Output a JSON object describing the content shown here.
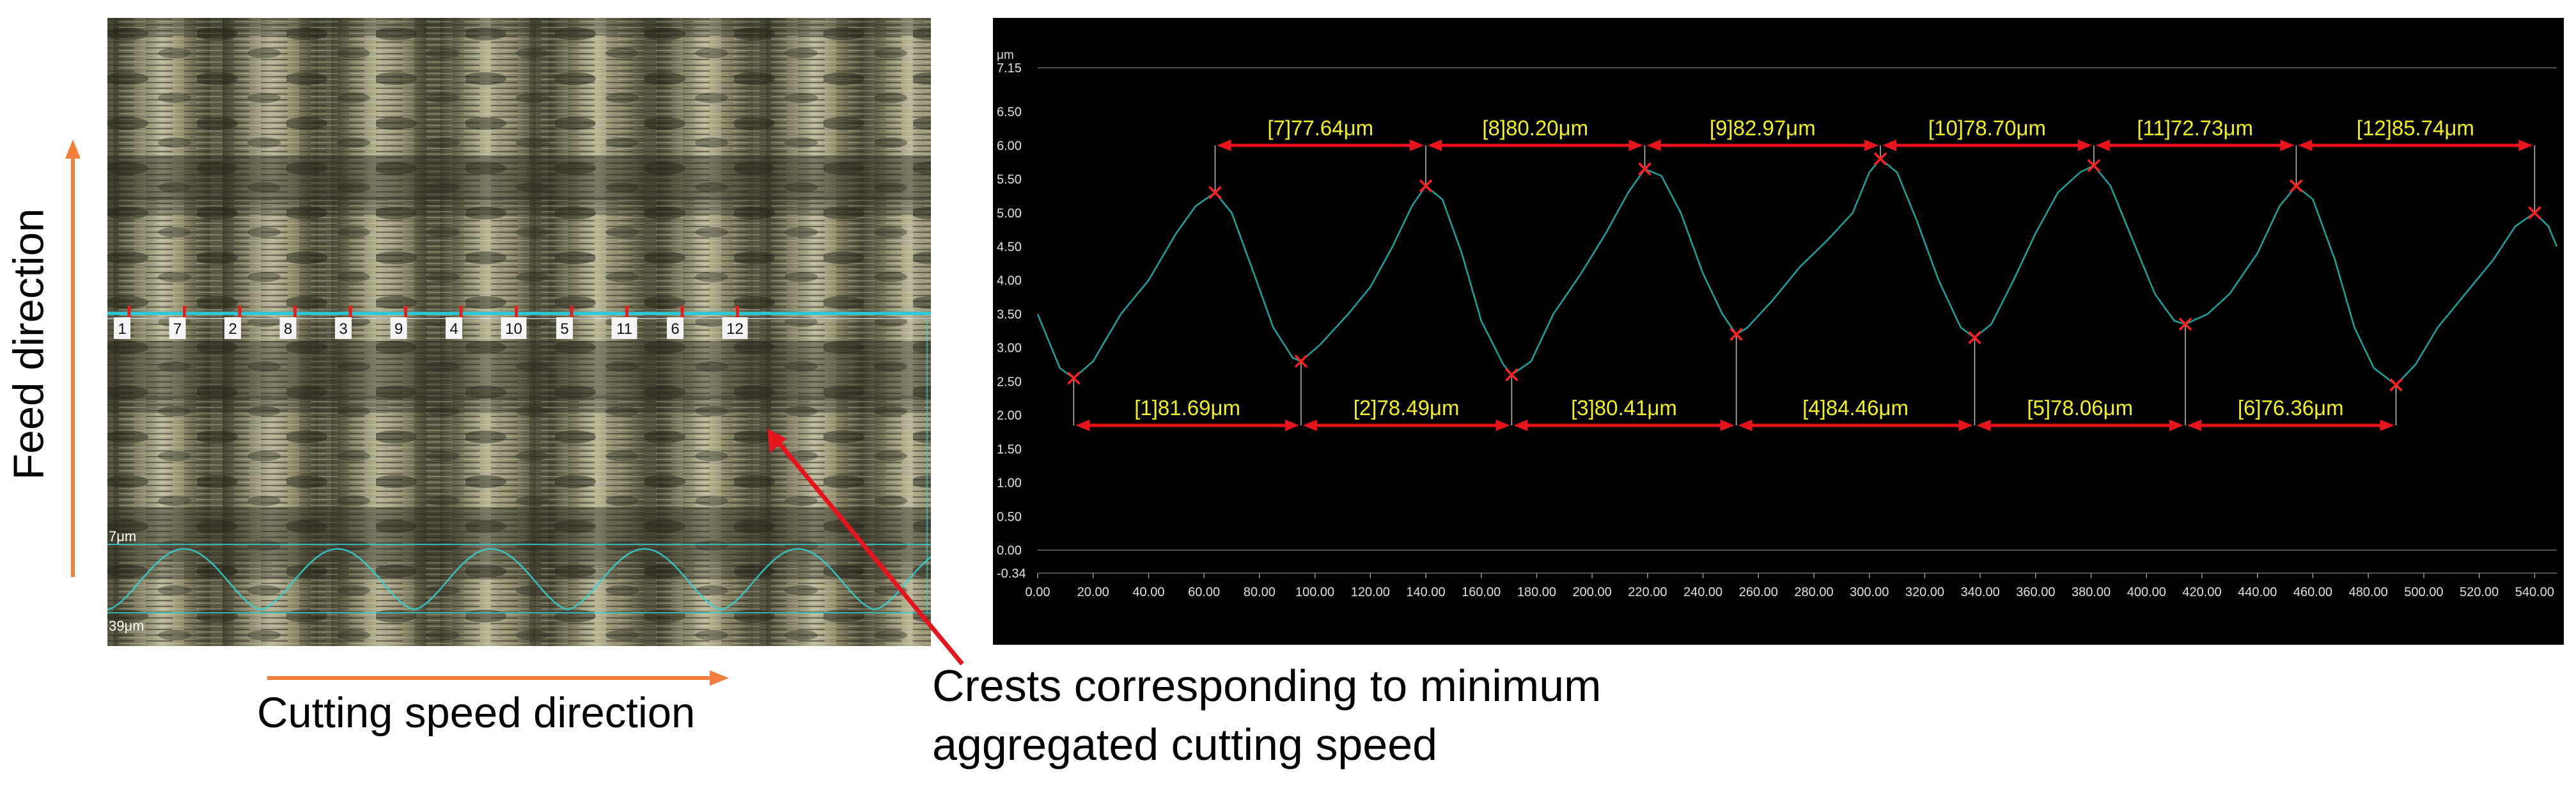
{
  "labels": {
    "feed_direction": "Feed direction",
    "cutting_speed_direction": "Cutting speed direction",
    "crest_annotation_line1": "Crests corresponding to minimum",
    "crest_annotation_line2": "aggregated cutting speed"
  },
  "micrograph": {
    "marker_numbers": [
      "1",
      "7",
      "2",
      "8",
      "3",
      "9",
      "4",
      "10",
      "5",
      "11",
      "6",
      "12"
    ],
    "inset_unit_top": "7μm",
    "inset_unit_bottom": "39μm"
  },
  "colors": {
    "orange_arrow": "#f07f3c",
    "red_arrow": "#e8141c",
    "profile_line": "#1aa59e",
    "measure_text": "#f2f21e",
    "marker": "#ff2020"
  },
  "chart_data": {
    "type": "line",
    "title": "",
    "ylabel_unit": "μm",
    "xlim": [
      0,
      548
    ],
    "ylim": [
      -0.34,
      7.15
    ],
    "x_ticks": [
      "0.00",
      "20.00",
      "40.00",
      "60.00",
      "80.00",
      "100.00",
      "120.00",
      "140.00",
      "160.00",
      "180.00",
      "200.00",
      "220.00",
      "240.00",
      "260.00",
      "280.00",
      "300.00",
      "320.00",
      "340.00",
      "360.00",
      "380.00",
      "400.00",
      "420.00",
      "440.00",
      "460.00",
      "480.00",
      "500.00",
      "520.00",
      "540.00"
    ],
    "y_ticks": [
      "7.15",
      "6.50",
      "6.00",
      "5.50",
      "5.00",
      "4.50",
      "4.00",
      "3.50",
      "3.00",
      "2.50",
      "2.00",
      "1.50",
      "1.00",
      "0.50",
      "0.00",
      "-0.34"
    ],
    "profile": [
      [
        0,
        3.5
      ],
      [
        4,
        3.1
      ],
      [
        8,
        2.7
      ],
      [
        13,
        2.55
      ],
      [
        20,
        2.8
      ],
      [
        30,
        3.5
      ],
      [
        40,
        4.0
      ],
      [
        50,
        4.7
      ],
      [
        57,
        5.1
      ],
      [
        64,
        5.3
      ],
      [
        70,
        5.0
      ],
      [
        78,
        4.1
      ],
      [
        85,
        3.3
      ],
      [
        92,
        2.85
      ],
      [
        95,
        2.8
      ],
      [
        102,
        3.05
      ],
      [
        112,
        3.5
      ],
      [
        120,
        3.9
      ],
      [
        128,
        4.5
      ],
      [
        135,
        5.1
      ],
      [
        140,
        5.4
      ],
      [
        146,
        5.2
      ],
      [
        153,
        4.4
      ],
      [
        160,
        3.4
      ],
      [
        168,
        2.75
      ],
      [
        171,
        2.6
      ],
      [
        178,
        2.8
      ],
      [
        186,
        3.5
      ],
      [
        196,
        4.1
      ],
      [
        205,
        4.7
      ],
      [
        213,
        5.3
      ],
      [
        219,
        5.65
      ],
      [
        225,
        5.55
      ],
      [
        232,
        5.0
      ],
      [
        240,
        4.1
      ],
      [
        247,
        3.5
      ],
      [
        252,
        3.2
      ],
      [
        256,
        3.3
      ],
      [
        265,
        3.7
      ],
      [
        275,
        4.2
      ],
      [
        285,
        4.6
      ],
      [
        294,
        5.0
      ],
      [
        300,
        5.6
      ],
      [
        304,
        5.8
      ],
      [
        310,
        5.6
      ],
      [
        317,
        4.9
      ],
      [
        325,
        4.0
      ],
      [
        333,
        3.3
      ],
      [
        338,
        3.15
      ],
      [
        344,
        3.35
      ],
      [
        352,
        4.0
      ],
      [
        360,
        4.7
      ],
      [
        368,
        5.3
      ],
      [
        376,
        5.6
      ],
      [
        381,
        5.7
      ],
      [
        387,
        5.4
      ],
      [
        395,
        4.6
      ],
      [
        403,
        3.8
      ],
      [
        410,
        3.4
      ],
      [
        414,
        3.35
      ],
      [
        422,
        3.5
      ],
      [
        430,
        3.8
      ],
      [
        440,
        4.4
      ],
      [
        448,
        5.1
      ],
      [
        454,
        5.4
      ],
      [
        460,
        5.2
      ],
      [
        468,
        4.3
      ],
      [
        475,
        3.3
      ],
      [
        482,
        2.7
      ],
      [
        490,
        2.45
      ],
      [
        497,
        2.75
      ],
      [
        505,
        3.3
      ],
      [
        515,
        3.8
      ],
      [
        525,
        4.3
      ],
      [
        533,
        4.8
      ],
      [
        540,
        5.0
      ],
      [
        545,
        4.8
      ],
      [
        548,
        4.5
      ]
    ],
    "crest_markers": [
      [
        64,
        5.3
      ],
      [
        140,
        5.4
      ],
      [
        219,
        5.65
      ],
      [
        304,
        5.8
      ],
      [
        381,
        5.7
      ],
      [
        454,
        5.4
      ],
      [
        540,
        5.0
      ]
    ],
    "valley_markers": [
      [
        13,
        2.55
      ],
      [
        95,
        2.8
      ],
      [
        171,
        2.6
      ],
      [
        252,
        3.2
      ],
      [
        338,
        3.15
      ],
      [
        414,
        3.35
      ],
      [
        490,
        2.45
      ]
    ],
    "measurements_top": [
      {
        "label": "[7]77.64μm",
        "x1": 64,
        "x2": 140
      },
      {
        "label": "[8]80.20μm",
        "x1": 140,
        "x2": 219
      },
      {
        "label": "[9]82.97μm",
        "x1": 219,
        "x2": 304
      },
      {
        "label": "[10]78.70μm",
        "x1": 304,
        "x2": 381
      },
      {
        "label": "[11]72.73μm",
        "x1": 381,
        "x2": 454
      },
      {
        "label": "[12]85.74μm",
        "x1": 454,
        "x2": 540
      }
    ],
    "measurements_bottom": [
      {
        "label": "[1]81.69μm",
        "x1": 13,
        "x2": 95
      },
      {
        "label": "[2]78.49μm",
        "x1": 95,
        "x2": 171
      },
      {
        "label": "[3]80.41μm",
        "x1": 171,
        "x2": 252
      },
      {
        "label": "[4]84.46μm",
        "x1": 252,
        "x2": 338
      },
      {
        "label": "[5]78.06μm",
        "x1": 338,
        "x2": 414
      },
      {
        "label": "[6]76.36μm",
        "x1": 414,
        "x2": 490
      }
    ],
    "measure_level_top": 6.0,
    "measure_level_bottom": 1.85
  }
}
